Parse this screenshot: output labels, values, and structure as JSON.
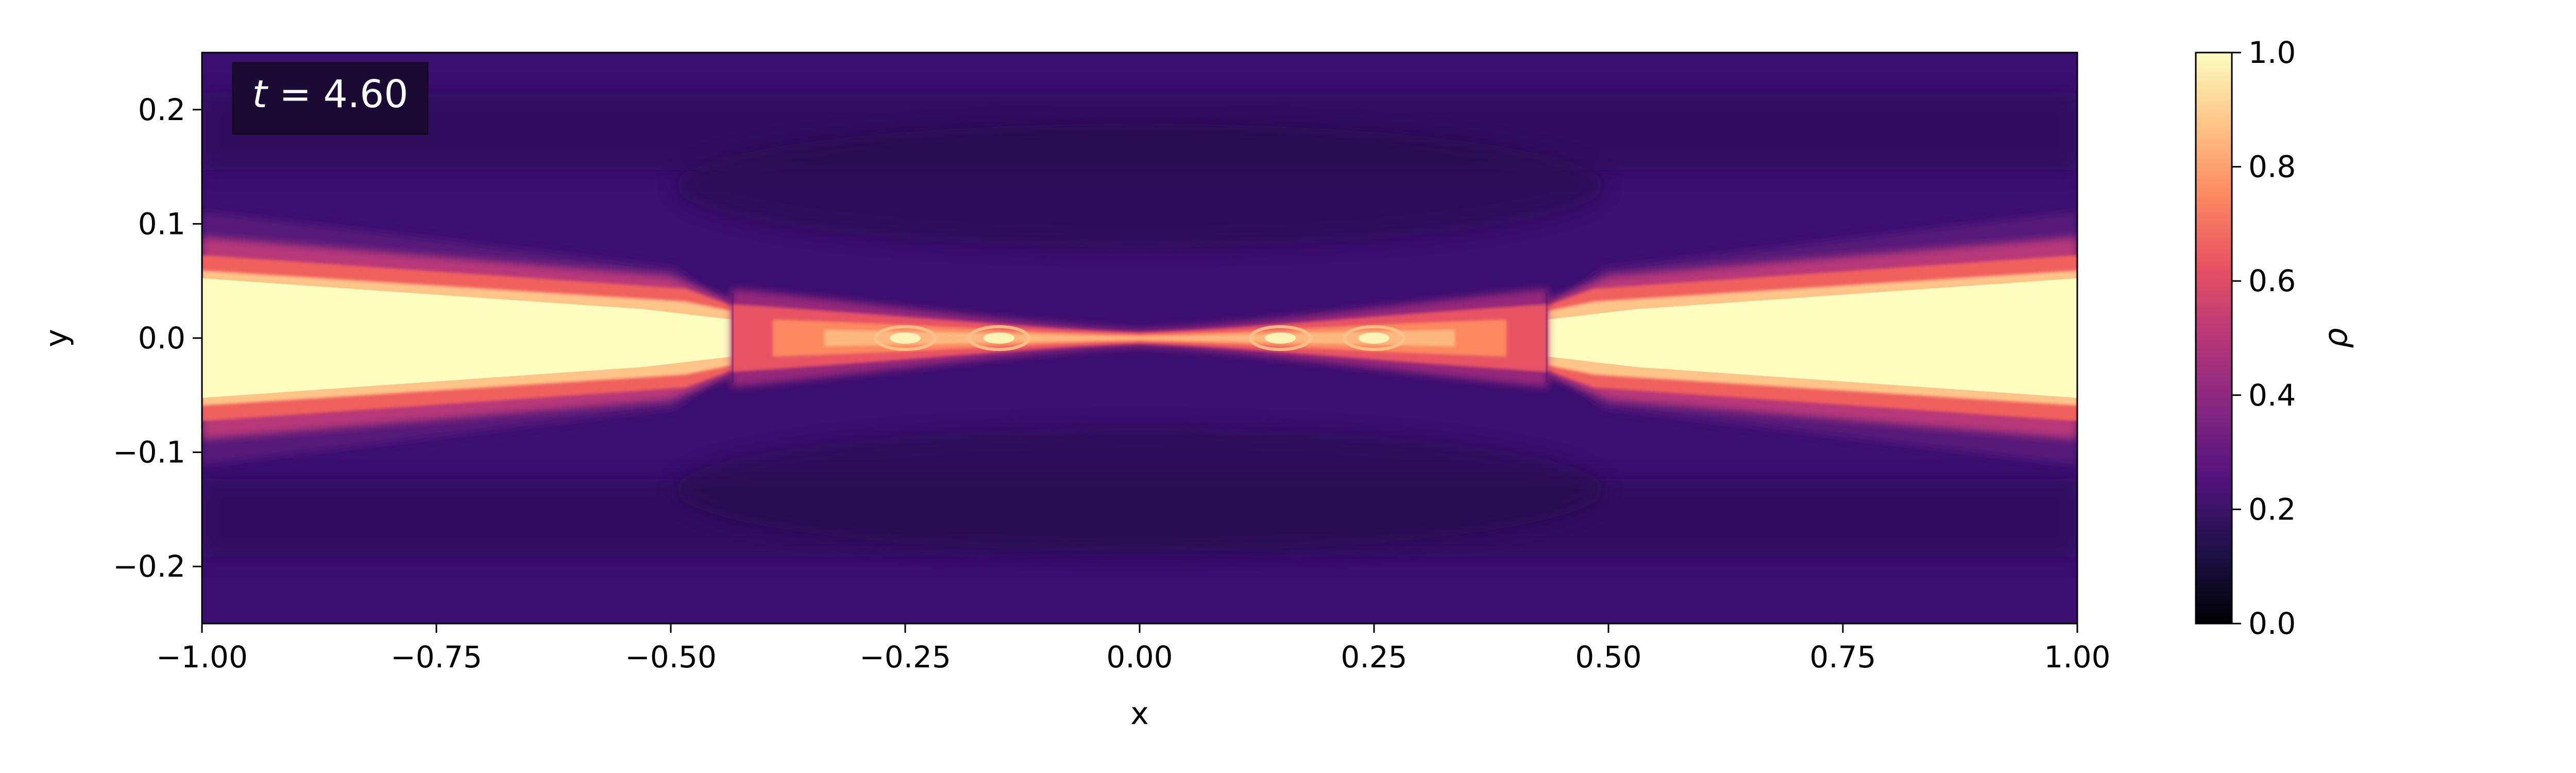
{
  "chart_data": {
    "type": "heatmap",
    "title": "",
    "xlabel": "x",
    "ylabel": "y",
    "xlim": [
      -1.0,
      1.0
    ],
    "ylim": [
      -0.25,
      0.25
    ],
    "xticks": [
      -1.0,
      -0.75,
      -0.5,
      -0.25,
      0.0,
      0.25,
      0.5,
      0.75,
      1.0
    ],
    "xtick_labels": [
      "−1.00",
      "−0.75",
      "−0.50",
      "−0.25",
      "0.00",
      "0.25",
      "0.50",
      "0.75",
      "1.00"
    ],
    "yticks": [
      -0.2,
      -0.1,
      0.0,
      0.1,
      0.2
    ],
    "ytick_labels": [
      "−0.2",
      "−0.1",
      "0.0",
      "0.1",
      "0.2"
    ],
    "annotation": {
      "prefix": "t = ",
      "value": "4.60"
    },
    "colormap": "magma",
    "colormap_stops": [
      "#000004",
      "#1d1147",
      "#51127c",
      "#832681",
      "#b73779",
      "#e75263",
      "#fc8961",
      "#fec488",
      "#fcfdbf"
    ],
    "colorbar": {
      "label": "ρ",
      "vmin": 0.0,
      "vmax": 1.0,
      "ticks": [
        0.0,
        0.2,
        0.4,
        0.6,
        0.8,
        1.0
      ],
      "tick_labels": [
        "0.0",
        "0.2",
        "0.4",
        "0.6",
        "0.8",
        "1.0"
      ]
    },
    "field_features": {
      "background_density": 0.25,
      "dense_jets": [
        {
          "side": "left",
          "x_range": [
            -1.0,
            -0.44
          ],
          "center_y": 0.0,
          "core_half_width_y": 0.06,
          "peak_density": 1.0
        },
        {
          "side": "right",
          "x_range": [
            0.44,
            1.0
          ],
          "center_y": 0.0,
          "core_half_width_y": 0.06,
          "peak_density": 1.0
        }
      ],
      "shear_layer": {
        "x_range": [
          -0.44,
          0.44
        ],
        "center_y": 0.0,
        "half_width_y": 0.02,
        "peak_density": 0.75
      },
      "vortices_x": [
        -0.25,
        -0.15,
        0.15,
        0.25
      ],
      "shock_fronts_x": [
        -0.44,
        0.44
      ]
    }
  }
}
